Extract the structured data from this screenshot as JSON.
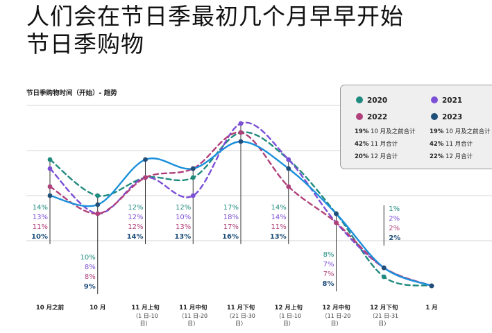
{
  "page": {
    "title_line1": "人们会在节日季最初几个月早早开始",
    "title_line2": "节日季购物"
  },
  "chart_data": {
    "type": "line",
    "title": "节日季购物时间（开始）- 趋势",
    "categories": [
      {
        "label": "10 月之前",
        "sub": []
      },
      {
        "label": "10 月",
        "sub": []
      },
      {
        "label": "11 月上旬",
        "sub": [
          "（1 日-10",
          "日）"
        ]
      },
      {
        "label": "11 月中旬",
        "sub": [
          "（11 日-20",
          "日）"
        ]
      },
      {
        "label": "11 月下旬",
        "sub": [
          "（21 日-30",
          "日）"
        ]
      },
      {
        "label": "12 月上旬",
        "sub": [
          "（1 日-10",
          "日）"
        ]
      },
      {
        "label": "12 月中旬",
        "sub": [
          "（11 日-20",
          "日）"
        ]
      },
      {
        "label": "12 月下旬",
        "sub": [
          "（21 日-31",
          "日）"
        ]
      },
      {
        "label": "1 月",
        "sub": []
      }
    ],
    "series": [
      {
        "name": "2020",
        "color": "#1f8a7e",
        "dashed": true,
        "values": [
          14,
          10,
          12,
          12,
          17,
          14,
          8,
          1,
          0
        ],
        "labels": [
          "14%",
          "10%",
          "12%",
          "12%",
          "17%",
          "14%",
          "8%",
          "1%",
          null
        ]
      },
      {
        "name": "2021",
        "color": "#7b4fd6",
        "dashed": true,
        "values": [
          13,
          8,
          12,
          10,
          18,
          14,
          7,
          2,
          0
        ],
        "labels": [
          "13%",
          "8%",
          "12%",
          "10%",
          "18%",
          "14%",
          "7%",
          "2%",
          null
        ]
      },
      {
        "name": "2022",
        "color": "#b0407a",
        "dashed": true,
        "values": [
          11,
          8,
          12,
          13,
          17,
          11,
          7,
          2,
          0
        ],
        "labels": [
          "11%",
          "8%",
          "12%",
          "13%",
          "17%",
          "11%",
          "7%",
          "2%",
          null
        ]
      },
      {
        "name": "2023",
        "color": "#1b8fdb",
        "label_color": "#1f4e79",
        "dashed": false,
        "values": [
          10,
          9,
          14,
          13,
          16,
          13,
          8,
          2,
          0
        ],
        "labels": [
          "10%",
          "9%",
          "14%",
          "13%",
          "16%",
          "13%",
          "8%",
          "2%",
          null
        ]
      }
    ],
    "ylim": [
      0,
      20
    ],
    "grid": true,
    "legend": {
      "position": "top-right",
      "notes": [
        {
          "bold": "19%",
          "text": " 10 月及之前合计"
        },
        {
          "bold": "19%",
          "text": " 10 月及之前合计"
        },
        {
          "bold": "42%",
          "text": " 11 月合计"
        },
        {
          "bold": "42%",
          "text": " 11 月合计"
        },
        {
          "bold": "20%",
          "text": " 12 月合计"
        },
        {
          "bold": "22%",
          "text": " 12 月合计"
        }
      ]
    }
  }
}
